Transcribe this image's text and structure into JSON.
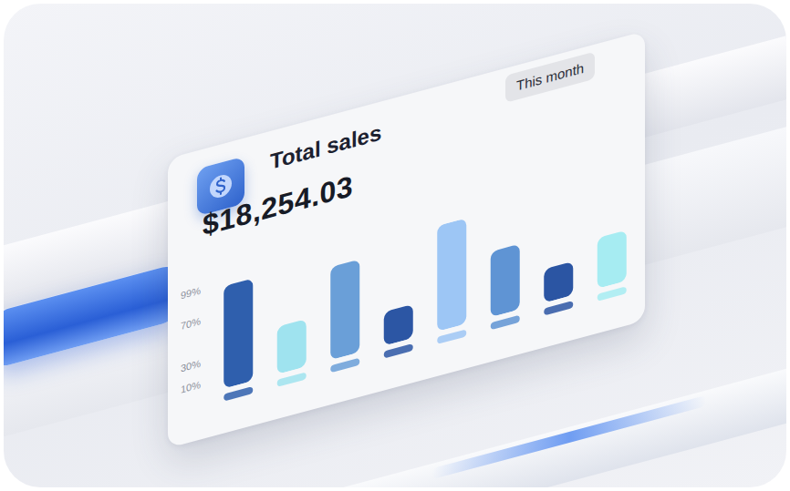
{
  "chart_data": {
    "type": "bar",
    "title": "Total sales",
    "subtitle": "$18,254.03",
    "annotations": [
      "This month"
    ],
    "categories": [
      null,
      null,
      null,
      null,
      null,
      null,
      null,
      null
    ],
    "values": [
      97,
      45,
      88,
      32,
      100,
      62,
      32,
      48
    ],
    "colors": [
      "#2f5fad",
      "#9fe3ef",
      "#6a9fd8",
      "#2c56a4",
      "#9dc6f5",
      "#5f94d4",
      "#2b55a3",
      "#a6ecf2"
    ],
    "ylim": [
      0,
      100
    ],
    "yticks": [
      {
        "value": 10,
        "label": "10%"
      },
      {
        "value": 30,
        "label": "30%"
      },
      {
        "value": 70,
        "label": "70%"
      },
      {
        "value": 99,
        "label": "99%"
      }
    ],
    "grid": false,
    "tick_labels": "y"
  }
}
